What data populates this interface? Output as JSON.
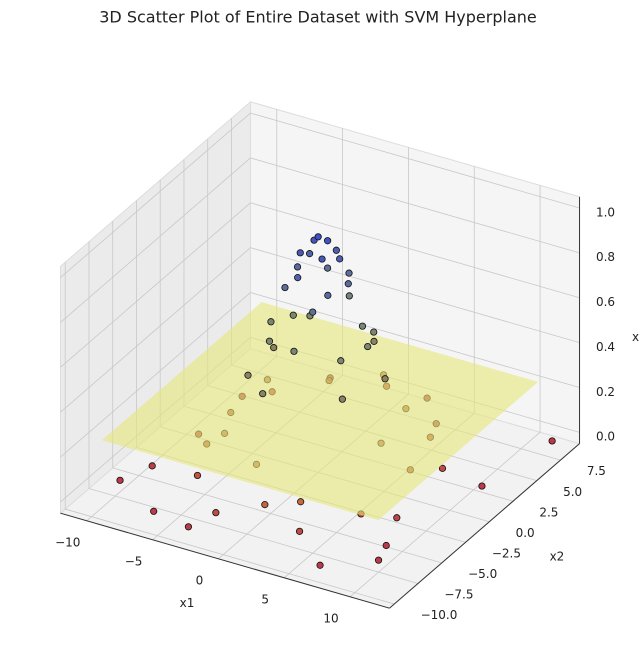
{
  "chart_data": {
    "type": "scatter3d",
    "title": "3D Scatter Plot of Entire Dataset with SVM Hyperplane",
    "x_label": "x1",
    "y_label": "x2",
    "z_label": "x",
    "xlim": [
      -12,
      13
    ],
    "ylim": [
      -10.5,
      9.5
    ],
    "zlim": [
      -0.05,
      1.05
    ],
    "xticks": [
      {
        "value": -10,
        "label": "−10"
      },
      {
        "value": -5,
        "label": "−5"
      },
      0,
      5,
      10
    ],
    "yticks": [
      {
        "value": -10,
        "label": "−10.0"
      },
      {
        "value": -7.5,
        "label": "−7.5"
      },
      {
        "value": -5,
        "label": "−5.0"
      },
      {
        "value": -2.5,
        "label": "−2.5"
      },
      {
        "value": 0,
        "label": "0.0"
      },
      {
        "value": 2.5,
        "label": "2.5"
      },
      {
        "value": 5,
        "label": "5.0"
      },
      {
        "value": 7.5,
        "label": "7.5"
      }
    ],
    "zticks": [
      {
        "value": 0,
        "label": "0.0"
      },
      {
        "value": 0.2,
        "label": "0.2"
      },
      {
        "value": 0.4,
        "label": "0.4"
      },
      {
        "value": 0.6,
        "label": "0.6"
      },
      {
        "value": 0.8,
        "label": "0.8"
      },
      {
        "value": 1,
        "label": "1.0"
      }
    ],
    "grid": true,
    "hyperplane": {
      "z": 0.25,
      "color": "#e6e67a"
    },
    "colormap": [
      {
        "at": 0,
        "color": "#b2182b"
      },
      {
        "at": 0.1,
        "color": "#c0561c"
      },
      {
        "at": 0.4,
        "color": "#8a8262"
      },
      {
        "at": 0.6,
        "color": "#778872"
      },
      {
        "at": 1,
        "color": "#3f4fc9"
      }
    ],
    "points": {
      "x": [
        0,
        0.5,
        -0.6,
        0.8,
        -1,
        1.2,
        -1.3,
        0.3,
        -0.4,
        1.6,
        -1.8,
        2,
        -2,
        0.9,
        -0.8,
        1.1,
        2.5,
        -2.4,
        2.8,
        -2.9,
        0.2,
        0.4,
        3.4,
        -3.3,
        2.2,
        -2.5,
        3.5,
        -3.6,
        1.5,
        -1.4,
        4,
        -4.1,
        4.5,
        -4.8,
        5.5,
        -5.3,
        1,
        -0.5,
        6,
        -6.3,
        3,
        -3.5,
        7,
        -7,
        0,
        1,
        5,
        -5.2,
        6.5,
        -6.6,
        8,
        -8,
        2.5,
        -2,
        4,
        -4.5,
        8.5,
        -8.3,
        9.5,
        -9,
        10,
        7,
        -6,
        -10,
        12,
        -3,
        11
      ],
      "y": [
        0,
        0.3,
        0.4,
        -0.7,
        -0.5,
        0.6,
        0.9,
        1.5,
        -1.6,
        -1.2,
        -1,
        0.4,
        0.6,
        2,
        2.1,
        -2.1,
        1.2,
        -1.8,
        -1.5,
        1.4,
        3,
        -3.1,
        0.5,
        -0.4,
        2.8,
        2.6,
        -2.3,
        -2.4,
        3.8,
        -3.9,
        1.5,
        1,
        3,
        -3.2,
        -1,
        2,
        5.5,
        -5.8,
        3.5,
        -3,
        -6,
        6,
        0,
        0.5,
        7.2,
        -7,
        5.5,
        -5.5,
        -4.5,
        4.3,
        2,
        -1.5,
        8,
        -8,
        -7.5,
        7.5,
        -3.5,
        3.5,
        -6,
        -5,
        -7.5,
        -9.5,
        -9,
        -7,
        8,
        -9.5,
        2
      ],
      "z": [
        1,
        0.98,
        0.96,
        0.94,
        0.93,
        0.9,
        0.87,
        0.89,
        0.87,
        0.81,
        0.78,
        0.81,
        0.81,
        0.78,
        0.77,
        0.76,
        0.6,
        0.56,
        0.55,
        0.55,
        0.63,
        0.61,
        0.55,
        0.58,
        0.51,
        0.51,
        0.42,
        0.41,
        0.42,
        0.42,
        0.38,
        0.4,
        0.2,
        0.16,
        0.21,
        0.2,
        0.2,
        0.19,
        0.08,
        0.08,
        0.09,
        0.08,
        0.08,
        0.08,
        0.07,
        0.08,
        0.05,
        0.05,
        0.04,
        0.04,
        0.03,
        0.04,
        0.03,
        0.03,
        0.03,
        0.02,
        0.02,
        0.02,
        0.005,
        0.01,
        0.003,
        0.003,
        0.005,
        0.002,
        0,
        0.005,
        0.002
      ]
    }
  }
}
